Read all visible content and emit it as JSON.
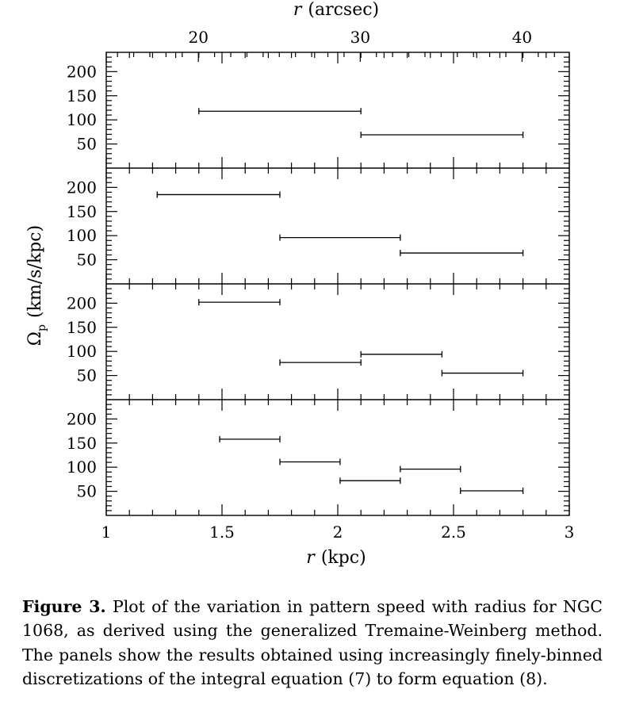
{
  "chart_data": {
    "type": "errorbar",
    "top_axis": {
      "label_italic": "r",
      "label_rest": "(arcsec)",
      "ticks": [
        20,
        30,
        40
      ]
    },
    "x_axis": {
      "label_italic": "r",
      "label_rest": "(kpc)",
      "range": [
        1,
        3
      ],
      "ticks": [
        "1",
        "1.5",
        "2",
        "2.5",
        "3"
      ]
    },
    "y_axis": {
      "label_symbol": "Ω",
      "label_sub": "p",
      "label_rest": "(km/s/kpc)",
      "range": [
        0,
        240
      ],
      "ticks": [
        50,
        100,
        150,
        200
      ]
    },
    "panels": [
      {
        "bins": [
          {
            "x0": 1.4,
            "x1": 2.1,
            "y": 118
          },
          {
            "x0": 2.1,
            "x1": 2.8,
            "y": 69
          }
        ]
      },
      {
        "bins": [
          {
            "x0": 1.22,
            "x1": 1.75,
            "y": 185
          },
          {
            "x0": 1.75,
            "x1": 2.27,
            "y": 96
          },
          {
            "x0": 2.27,
            "x1": 2.8,
            "y": 64
          }
        ]
      },
      {
        "bins": [
          {
            "x0": 1.4,
            "x1": 1.75,
            "y": 202
          },
          {
            "x0": 1.75,
            "x1": 2.1,
            "y": 77
          },
          {
            "x0": 2.1,
            "x1": 2.45,
            "y": 94
          },
          {
            "x0": 2.45,
            "x1": 2.8,
            "y": 55
          }
        ]
      },
      {
        "bins": [
          {
            "x0": 1.49,
            "x1": 1.75,
            "y": 158
          },
          {
            "x0": 1.75,
            "x1": 2.01,
            "y": 111
          },
          {
            "x0": 2.01,
            "x1": 2.27,
            "y": 72
          },
          {
            "x0": 2.27,
            "x1": 2.53,
            "y": 96
          },
          {
            "x0": 2.53,
            "x1": 2.8,
            "y": 51
          }
        ]
      }
    ]
  },
  "caption": {
    "label": "Figure 3.",
    "text": " Plot of the variation in pattern speed with radius for NGC 1068, as derived using the generalized Tremaine-Weinberg method. The panels show the results obtained using increasingly finely-binned discretizations of the integral equation (7) to form equation (8)."
  }
}
